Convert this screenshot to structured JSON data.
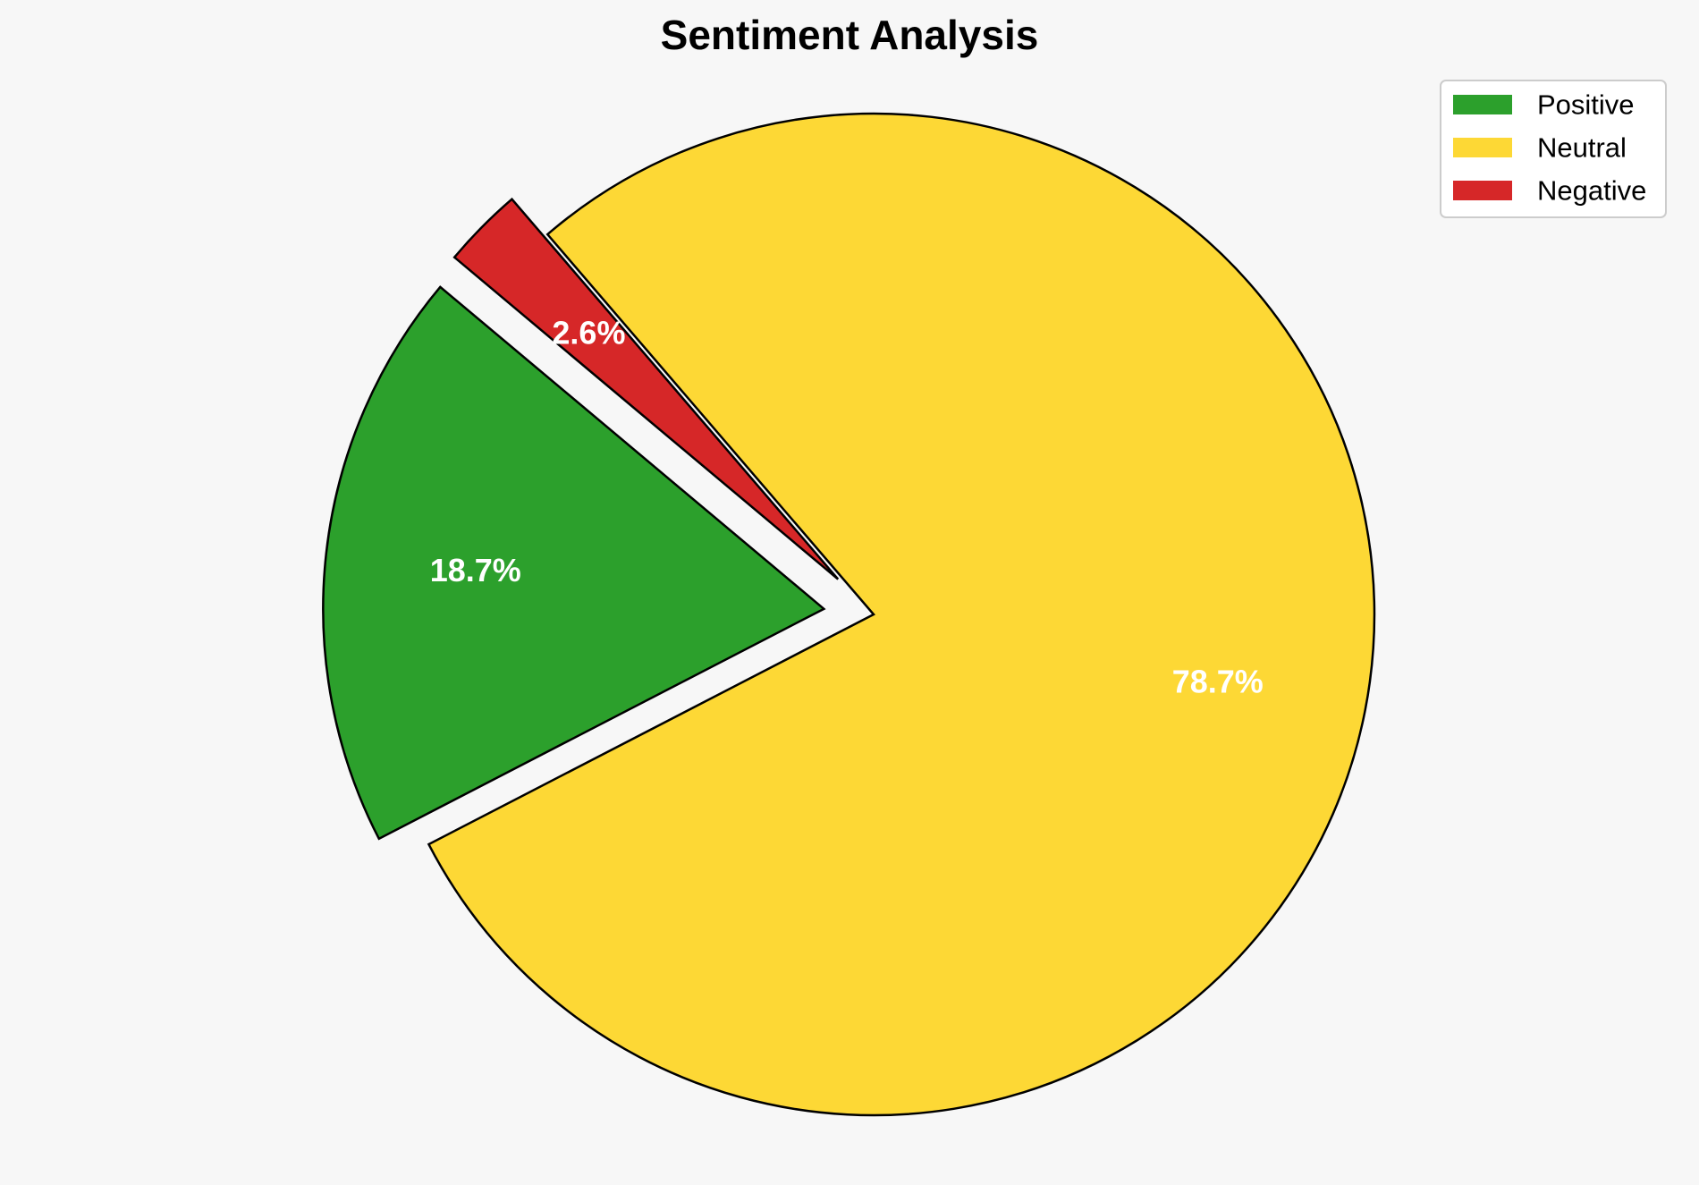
{
  "chart_data": {
    "type": "pie",
    "title": "Sentiment Analysis",
    "categories": [
      "Positive",
      "Neutral",
      "Negative"
    ],
    "values": [
      18.7,
      78.7,
      2.6
    ],
    "value_labels": [
      "18.7%",
      "78.7%",
      "2.6%"
    ],
    "colors": [
      "#2ca02c",
      "#fdd835",
      "#d62728"
    ],
    "exploded": [
      true,
      false,
      true
    ],
    "legend": {
      "position": "top-right",
      "entries": [
        "Positive",
        "Neutral",
        "Negative"
      ]
    }
  }
}
